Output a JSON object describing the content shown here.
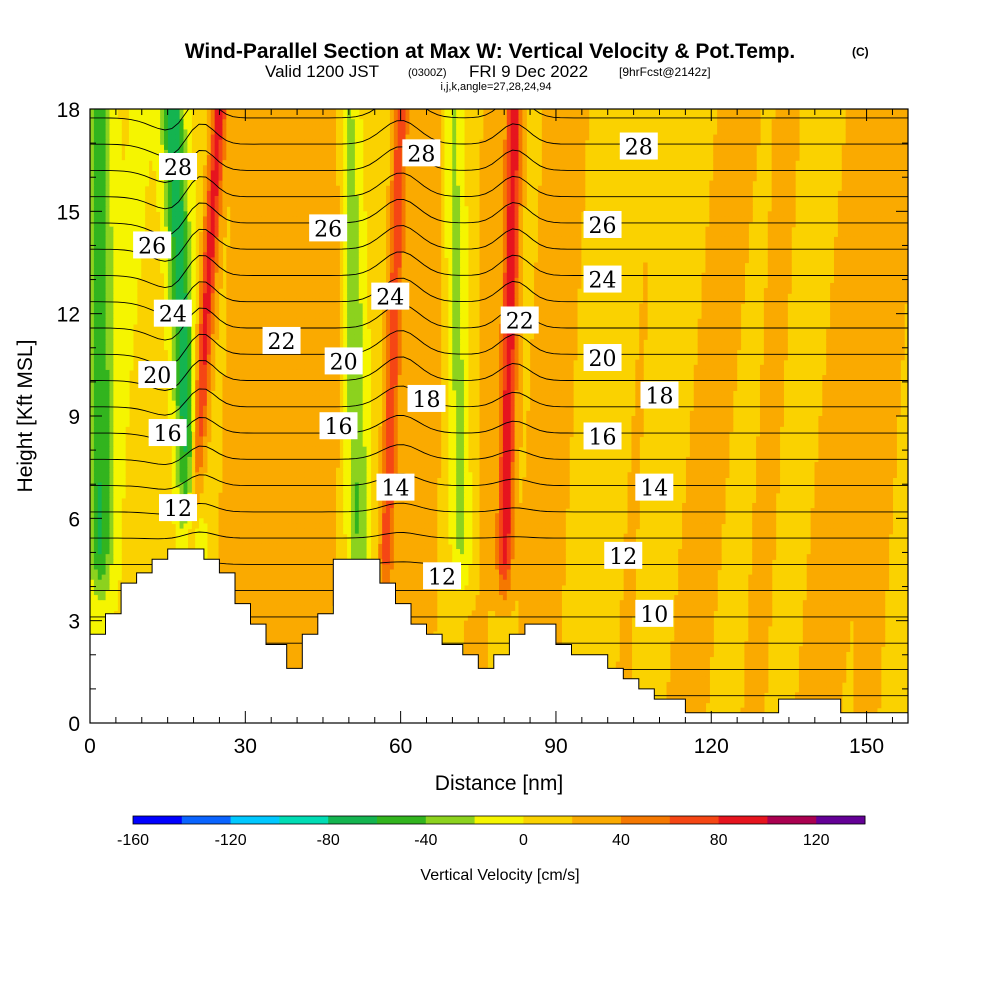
{
  "title": {
    "main": "Wind-Parallel Section at Max W: Vertical Velocity & Pot.Temp.",
    "copyright": "(C)",
    "valid_prefix": "Valid 1200 JST",
    "valid_utc": "(0300Z)",
    "valid_date": "FRI 9 Dec 2022",
    "forecast": "[9hrFcst@2142z]",
    "indices": "i,j,k,angle=27,28,24,94"
  },
  "chart_data": {
    "type": "heatmap",
    "xlabel": "Distance [nm]",
    "ylabel": "Height [Kft MSL]",
    "xlim": [
      0,
      158
    ],
    "ylim": [
      0,
      18
    ],
    "x_ticks": [
      0,
      30,
      60,
      90,
      120,
      150
    ],
    "y_ticks": [
      0,
      3,
      6,
      9,
      12,
      15,
      18
    ],
    "colorbar": {
      "label": "Vertical Velocity [cm/s]",
      "min": -160,
      "max": 140,
      "step": 20,
      "tick_values": [
        -160,
        -120,
        -80,
        -40,
        0,
        40,
        80,
        120
      ],
      "colors": [
        "#0000ff",
        "#0a64ff",
        "#00c8ff",
        "#00dcb4",
        "#14b450",
        "#32b41e",
        "#8cd21e",
        "#f5f500",
        "#fad200",
        "#faaa00",
        "#f57800",
        "#f54614",
        "#e6141e",
        "#aa0050",
        "#640096"
      ]
    },
    "terrain": [
      [
        0,
        2.6
      ],
      [
        3,
        2.6
      ],
      [
        3,
        3.2
      ],
      [
        6,
        3.2
      ],
      [
        6,
        4.1
      ],
      [
        9,
        4.1
      ],
      [
        9,
        4.4
      ],
      [
        12,
        4.4
      ],
      [
        12,
        4.8
      ],
      [
        15,
        4.8
      ],
      [
        15,
        5.1
      ],
      [
        22,
        5.1
      ],
      [
        22,
        4.8
      ],
      [
        25,
        4.8
      ],
      [
        25,
        4.4
      ],
      [
        28,
        4.4
      ],
      [
        28,
        3.5
      ],
      [
        31,
        3.5
      ],
      [
        31,
        2.9
      ],
      [
        34,
        2.9
      ],
      [
        34,
        2.3
      ],
      [
        38,
        2.3
      ],
      [
        38,
        1.6
      ],
      [
        41,
        1.6
      ],
      [
        41,
        2.6
      ],
      [
        44,
        2.6
      ],
      [
        44,
        3.2
      ],
      [
        47,
        3.2
      ],
      [
        47,
        4.8
      ],
      [
        56,
        4.8
      ],
      [
        56,
        4.1
      ],
      [
        59,
        4.1
      ],
      [
        59,
        3.5
      ],
      [
        62,
        3.5
      ],
      [
        62,
        2.9
      ],
      [
        65,
        2.9
      ],
      [
        65,
        2.6
      ],
      [
        68,
        2.6
      ],
      [
        68,
        2.3
      ],
      [
        72,
        2.3
      ],
      [
        72,
        2.0
      ],
      [
        75,
        2.0
      ],
      [
        75,
        1.6
      ],
      [
        78,
        1.6
      ],
      [
        78,
        2.0
      ],
      [
        81,
        2.0
      ],
      [
        81,
        2.6
      ],
      [
        84,
        2.6
      ],
      [
        84,
        2.9
      ],
      [
        90,
        2.9
      ],
      [
        90,
        2.3
      ],
      [
        93,
        2.3
      ],
      [
        93,
        2.0
      ],
      [
        100,
        2.0
      ],
      [
        100,
        1.6
      ],
      [
        103,
        1.6
      ],
      [
        103,
        1.3
      ],
      [
        106,
        1.3
      ],
      [
        106,
        1.0
      ],
      [
        109,
        1.0
      ],
      [
        109,
        0.7
      ],
      [
        115,
        0.7
      ],
      [
        115,
        0.3
      ],
      [
        133,
        0.3
      ],
      [
        133,
        0.7
      ],
      [
        145,
        0.7
      ],
      [
        145,
        0.3
      ],
      [
        158,
        0.3
      ]
    ],
    "updraft_bands": [
      {
        "x_bottom": 19,
        "x_top": 25,
        "w": 80
      },
      {
        "x_bottom": 57,
        "x_top": 60,
        "w": 60
      },
      {
        "x_bottom": 80,
        "x_top": 82,
        "w": 80
      }
    ],
    "downdraft_bands": [
      {
        "x_bottom": 2,
        "x_top": 2,
        "w": -60
      },
      {
        "x_bottom": 20,
        "x_top": 16,
        "w": -80
      },
      {
        "x_bottom": 52,
        "x_top": 50,
        "w": -50
      },
      {
        "x_bottom": 72,
        "x_top": 70,
        "w": -40
      }
    ],
    "theta_contours": {
      "interval": 1,
      "levels_labeled": [
        10,
        12,
        14,
        16,
        18,
        20,
        22,
        24,
        26,
        28
      ],
      "labels": [
        {
          "text": "28",
          "x": 17,
          "y": 16.3
        },
        {
          "text": "26",
          "x": 12,
          "y": 14.0
        },
        {
          "text": "24",
          "x": 16,
          "y": 12.0
        },
        {
          "text": "20",
          "x": 13,
          "y": 10.2
        },
        {
          "text": "16",
          "x": 15,
          "y": 8.5
        },
        {
          "text": "12",
          "x": 17,
          "y": 6.3
        },
        {
          "text": "22",
          "x": 37,
          "y": 11.2
        },
        {
          "text": "26",
          "x": 46,
          "y": 14.5
        },
        {
          "text": "20",
          "x": 49,
          "y": 10.6
        },
        {
          "text": "16",
          "x": 48,
          "y": 8.7
        },
        {
          "text": "28",
          "x": 64,
          "y": 16.7
        },
        {
          "text": "24",
          "x": 58,
          "y": 12.5
        },
        {
          "text": "18",
          "x": 65,
          "y": 9.5
        },
        {
          "text": "14",
          "x": 59,
          "y": 6.9
        },
        {
          "text": "12",
          "x": 68,
          "y": 4.3
        },
        {
          "text": "22",
          "x": 83,
          "y": 11.8
        },
        {
          "text": "28",
          "x": 106,
          "y": 16.9
        },
        {
          "text": "26",
          "x": 99,
          "y": 14.6
        },
        {
          "text": "24",
          "x": 99,
          "y": 13.0
        },
        {
          "text": "20",
          "x": 99,
          "y": 10.7
        },
        {
          "text": "18",
          "x": 110,
          "y": 9.6
        },
        {
          "text": "16",
          "x": 99,
          "y": 8.4
        },
        {
          "text": "14",
          "x": 109,
          "y": 6.9
        },
        {
          "text": "12",
          "x": 103,
          "y": 4.9
        },
        {
          "text": "10",
          "x": 109,
          "y": 3.2
        }
      ]
    }
  }
}
